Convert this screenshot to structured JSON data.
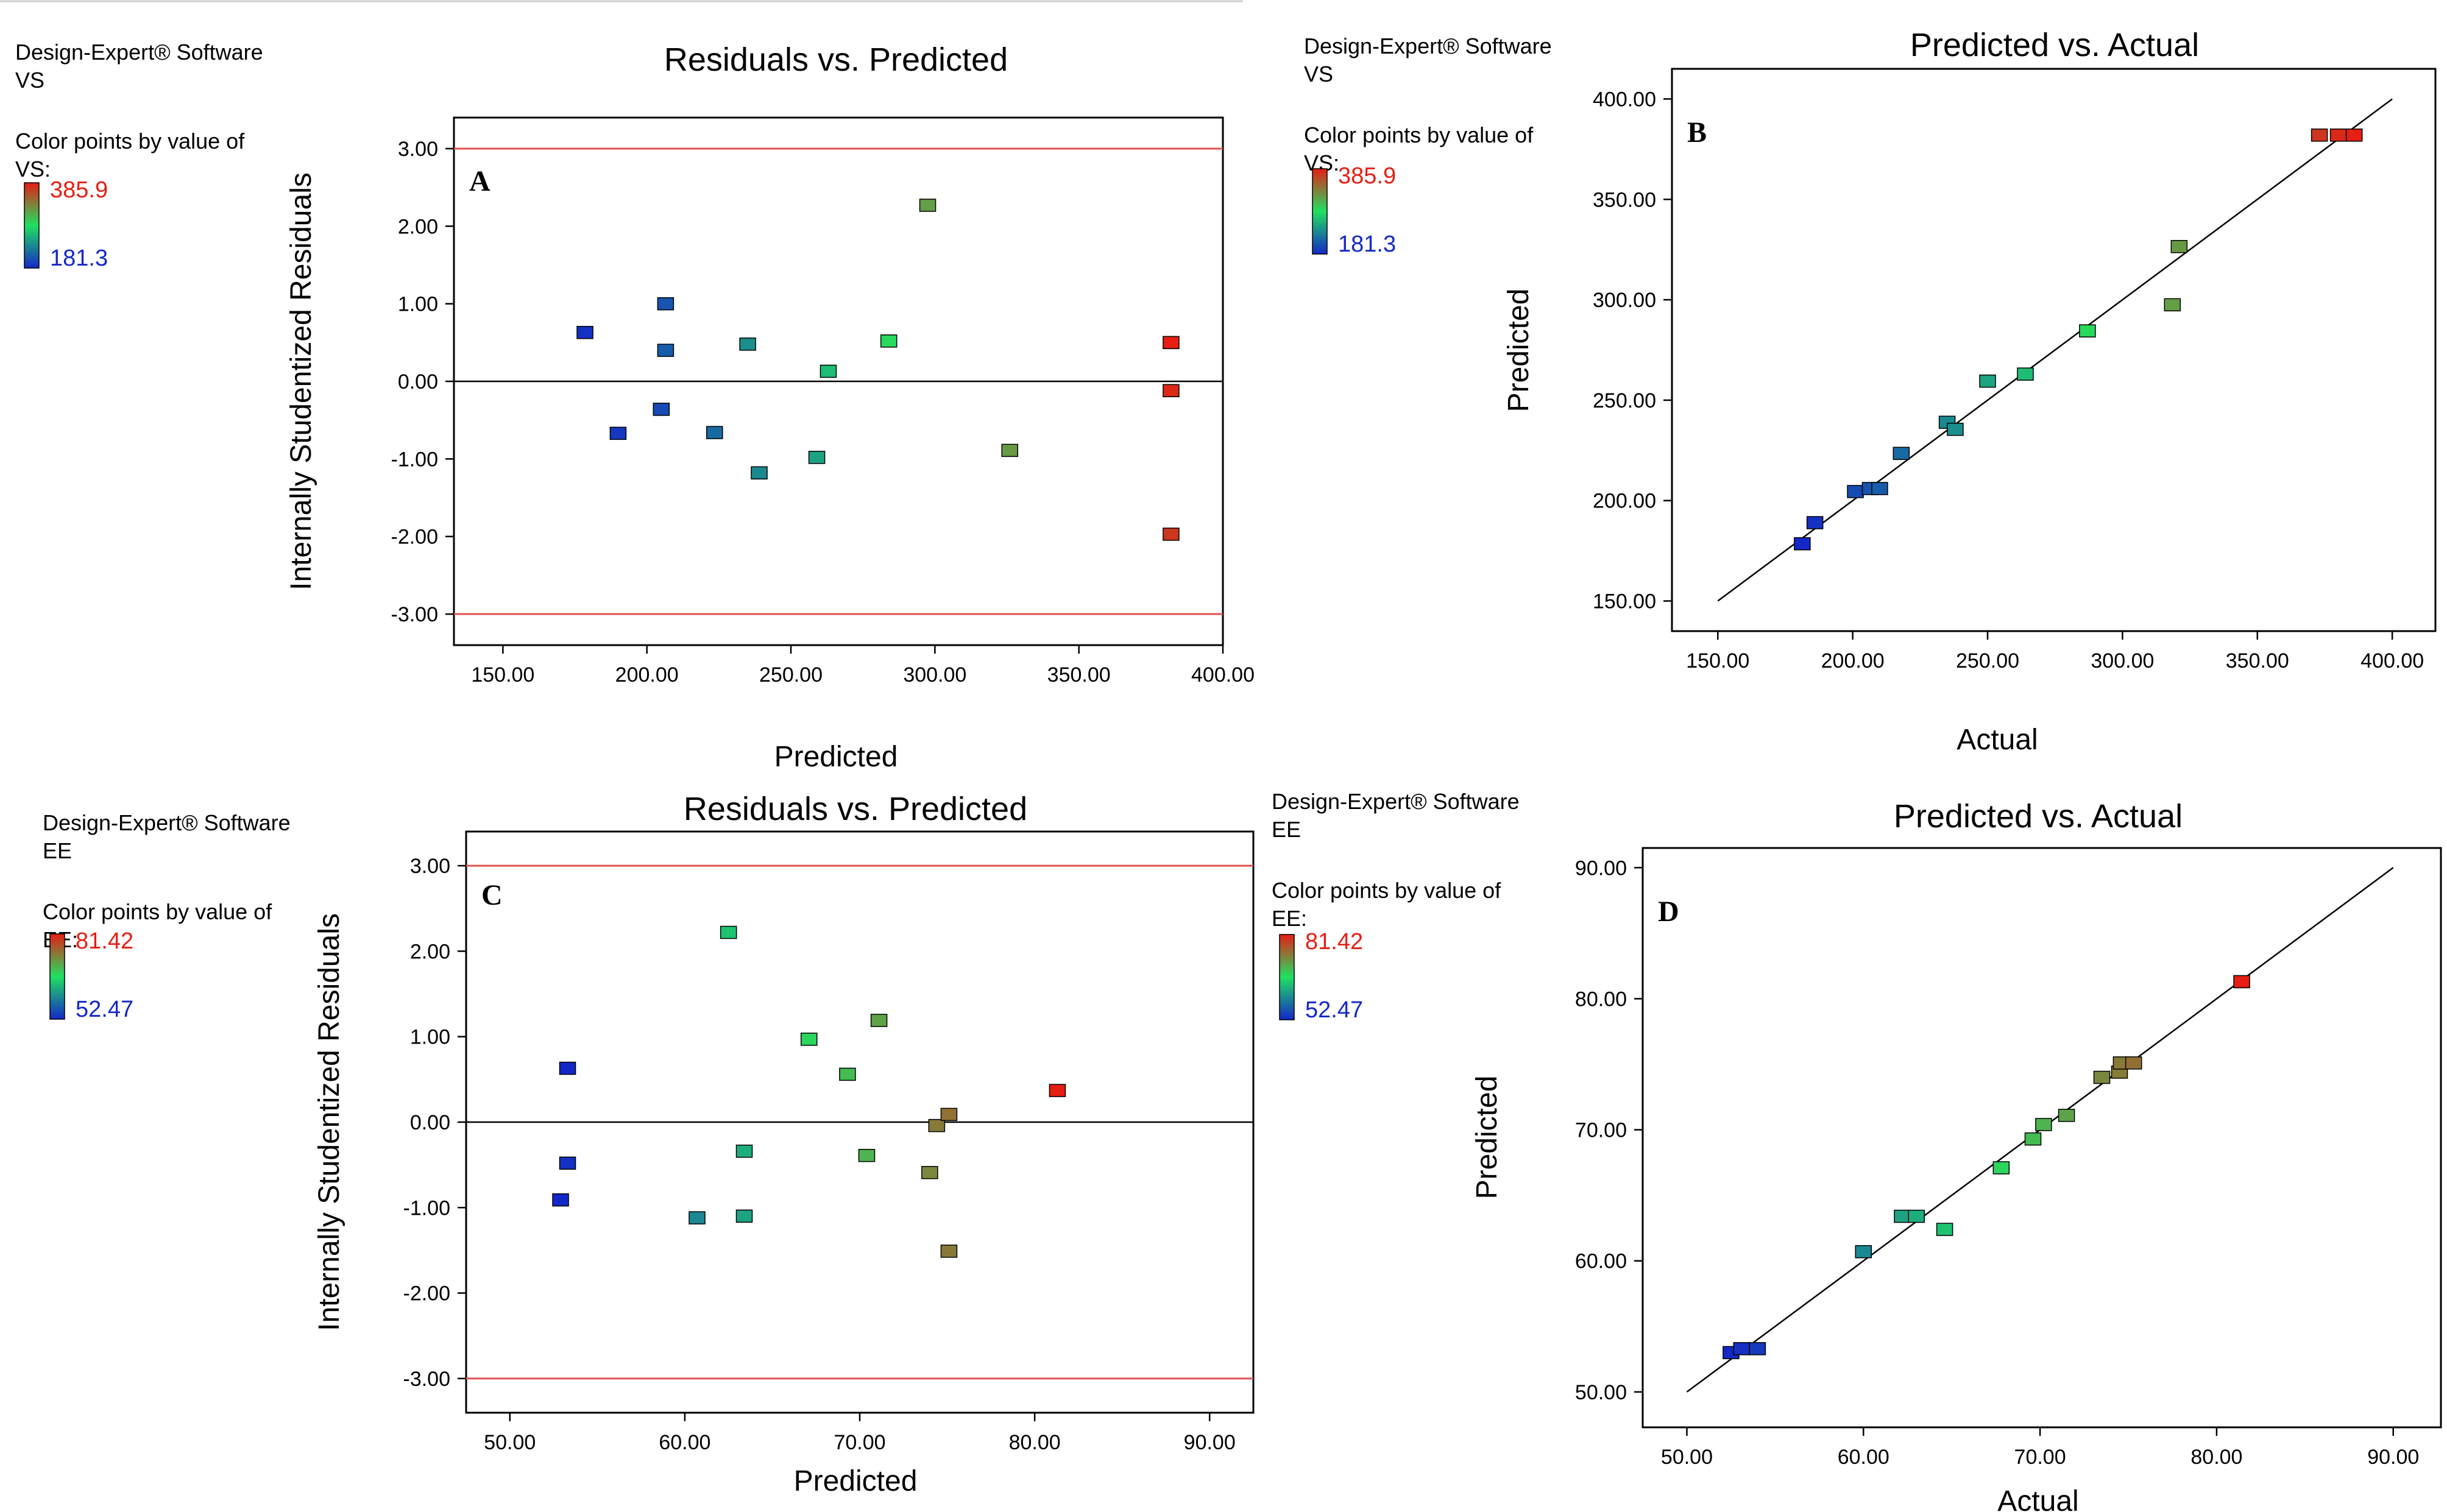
{
  "legend_heading": "Color points by value of",
  "colors": {
    "low": "#1428c8",
    "mid": "#20e060",
    "high": "#e61e14",
    "limit_line": "#e05050",
    "axis": "#000000"
  },
  "chart_data": [
    {
      "id": "A",
      "type": "scatter",
      "title": "Residuals vs. Predicted",
      "xlabel": "Predicted",
      "ylabel": "Internally Studentized Residuals",
      "software": "Design-Expert® Software",
      "response": "VS",
      "legend_var": "VS:",
      "legend_max": "385.9",
      "legend_min": "181.3",
      "color_range": [
        181.3,
        385.9
      ],
      "xlim": [
        133,
        400
      ],
      "ylim": [
        -3.4,
        3.4
      ],
      "xticks": [
        150,
        200,
        250,
        300,
        350,
        400
      ],
      "xtick_labels": [
        "150.00",
        "200.00",
        "250.00",
        "300.00",
        "350.00",
        "400.00"
      ],
      "yticks": [
        3,
        2,
        1,
        0,
        -1,
        -2,
        -3
      ],
      "ytick_labels": [
        "3.00",
        "2.00",
        "1.00",
        "0.00",
        "-1.00",
        "-2.00",
        "-3.00"
      ],
      "limit_lines": [
        3,
        -3
      ],
      "zero_line": 0,
      "points": [
        {
          "x": 178.5,
          "y": 0.63,
          "c": 186
        },
        {
          "x": 190,
          "y": -0.67,
          "c": 190
        },
        {
          "x": 205,
          "y": -0.36,
          "c": 200
        },
        {
          "x": 206.5,
          "y": 1.0,
          "c": 206
        },
        {
          "x": 206.5,
          "y": 0.4,
          "c": 210
        },
        {
          "x": 223.5,
          "y": -0.66,
          "c": 218
        },
        {
          "x": 235,
          "y": 0.48,
          "c": 238
        },
        {
          "x": 239,
          "y": -1.18,
          "c": 236
        },
        {
          "x": 259,
          "y": -0.98,
          "c": 250
        },
        {
          "x": 263,
          "y": 0.13,
          "c": 264
        },
        {
          "x": 284,
          "y": 0.52,
          "c": 287
        },
        {
          "x": 297.5,
          "y": 2.27,
          "c": 318
        },
        {
          "x": 326,
          "y": -0.89,
          "c": 321
        },
        {
          "x": 382,
          "y": 0.5,
          "c": 385.9
        },
        {
          "x": 382,
          "y": -0.12,
          "c": 380
        },
        {
          "x": 382,
          "y": -1.97,
          "c": 373
        }
      ]
    },
    {
      "id": "B",
      "type": "scatter",
      "title": "Predicted vs. Actual",
      "xlabel": "Actual",
      "ylabel": "Predicted",
      "software": "Design-Expert® Software",
      "response": "VS",
      "legend_var": "VS:",
      "legend_max": "385.9",
      "legend_min": "181.3",
      "color_range": [
        181.3,
        385.9
      ],
      "xlim": [
        133,
        416
      ],
      "ylim": [
        135,
        415
      ],
      "xticks": [
        150,
        200,
        250,
        300,
        350,
        400
      ],
      "xtick_labels": [
        "150.00",
        "200.00",
        "250.00",
        "300.00",
        "350.00",
        "400.00"
      ],
      "yticks": [
        400,
        350,
        300,
        250,
        200,
        150
      ],
      "ytick_labels": [
        "400.00",
        "350.00",
        "300.00",
        "250.00",
        "200.00",
        "150.00"
      ],
      "diagonal": [
        150,
        400
      ],
      "points": [
        {
          "x": 181.3,
          "y": 178.5,
          "c": 181.3
        },
        {
          "x": 186,
          "y": 189,
          "c": 186
        },
        {
          "x": 201,
          "y": 204.5,
          "c": 201
        },
        {
          "x": 206.5,
          "y": 206,
          "c": 206
        },
        {
          "x": 210,
          "y": 206,
          "c": 210
        },
        {
          "x": 218,
          "y": 223.5,
          "c": 218
        },
        {
          "x": 235,
          "y": 239,
          "c": 235
        },
        {
          "x": 238,
          "y": 235.5,
          "c": 238
        },
        {
          "x": 250,
          "y": 259.5,
          "c": 250
        },
        {
          "x": 264,
          "y": 263,
          "c": 264
        },
        {
          "x": 287,
          "y": 284.5,
          "c": 287
        },
        {
          "x": 318.5,
          "y": 297.5,
          "c": 318.5
        },
        {
          "x": 321,
          "y": 326.5,
          "c": 321
        },
        {
          "x": 373,
          "y": 382,
          "c": 373
        },
        {
          "x": 380,
          "y": 382,
          "c": 380
        },
        {
          "x": 385.9,
          "y": 382,
          "c": 385.9
        }
      ]
    },
    {
      "id": "C",
      "type": "scatter",
      "title": "Residuals vs. Predicted",
      "xlabel": "Predicted",
      "ylabel": "Internally Studentized Residuals",
      "software": "Design-Expert® Software",
      "response": "EE",
      "legend_var": "EE:",
      "legend_max": "81.42",
      "legend_min": "52.47",
      "color_range": [
        52.47,
        81.42
      ],
      "xlim": [
        47.5,
        92.5
      ],
      "ylim": [
        -3.4,
        3.4
      ],
      "xticks": [
        50,
        60,
        70,
        80,
        90
      ],
      "xtick_labels": [
        "50.00",
        "60.00",
        "70.00",
        "80.00",
        "90.00"
      ],
      "yticks": [
        3,
        2,
        1,
        0,
        -1,
        -2,
        -3
      ],
      "ytick_labels": [
        "3.00",
        "2.00",
        "1.00",
        "0.00",
        "-1.00",
        "-2.00",
        "-3.00"
      ],
      "limit_lines": [
        3,
        -3
      ],
      "zero_line": 0,
      "points": [
        {
          "x": 53.3,
          "y": 0.63,
          "c": 52.5
        },
        {
          "x": 53.3,
          "y": -0.48,
          "c": 53.2
        },
        {
          "x": 52.9,
          "y": -0.91,
          "c": 52.5
        },
        {
          "x": 60.7,
          "y": -1.12,
          "c": 60
        },
        {
          "x": 62.5,
          "y": 2.22,
          "c": 64.6
        },
        {
          "x": 63.4,
          "y": -0.34,
          "c": 63
        },
        {
          "x": 63.4,
          "y": -1.1,
          "c": 62.2
        },
        {
          "x": 67.1,
          "y": 0.97,
          "c": 67.8
        },
        {
          "x": 69.3,
          "y": 0.56,
          "c": 69.6
        },
        {
          "x": 70.4,
          "y": -0.39,
          "c": 70.2
        },
        {
          "x": 71.1,
          "y": 1.19,
          "c": 71.5
        },
        {
          "x": 74,
          "y": -0.59,
          "c": 73.5
        },
        {
          "x": 74.4,
          "y": -0.04,
          "c": 74.5
        },
        {
          "x": 75.1,
          "y": 0.09,
          "c": 75.3
        },
        {
          "x": 75.1,
          "y": -1.51,
          "c": 74.6
        },
        {
          "x": 81.3,
          "y": 0.37,
          "c": 81.42
        }
      ]
    },
    {
      "id": "D",
      "type": "scatter",
      "title": "Predicted vs. Actual",
      "xlabel": "Actual",
      "ylabel": "Predicted",
      "software": "Design-Expert® Software",
      "response": "EE",
      "legend_var": "EE:",
      "legend_max": "81.42",
      "legend_min": "52.47",
      "color_range": [
        52.47,
        81.42
      ],
      "xlim": [
        47.5,
        92.7
      ],
      "ylim": [
        47.3,
        91.5
      ],
      "xticks": [
        50,
        60,
        70,
        80,
        90
      ],
      "xtick_labels": [
        "50.00",
        "60.00",
        "70.00",
        "80.00",
        "90.00"
      ],
      "yticks": [
        90,
        80,
        70,
        60,
        50
      ],
      "ytick_labels": [
        "90.00",
        "80.00",
        "70.00",
        "60.00",
        "50.00"
      ],
      "diagonal": [
        50,
        90
      ],
      "points": [
        {
          "x": 52.5,
          "y": 53,
          "c": 52.47
        },
        {
          "x": 53.1,
          "y": 53.3,
          "c": 53.1
        },
        {
          "x": 54,
          "y": 53.3,
          "c": 54
        },
        {
          "x": 60,
          "y": 60.7,
          "c": 60
        },
        {
          "x": 62.2,
          "y": 63.4,
          "c": 62.2
        },
        {
          "x": 63,
          "y": 63.4,
          "c": 63
        },
        {
          "x": 64.6,
          "y": 62.4,
          "c": 64.6
        },
        {
          "x": 67.8,
          "y": 67.1,
          "c": 67.8
        },
        {
          "x": 69.6,
          "y": 69.3,
          "c": 69.6
        },
        {
          "x": 70.2,
          "y": 70.4,
          "c": 70.2
        },
        {
          "x": 71.5,
          "y": 71.1,
          "c": 71.5
        },
        {
          "x": 73.5,
          "y": 74,
          "c": 73.5
        },
        {
          "x": 74.5,
          "y": 74.4,
          "c": 74.5
        },
        {
          "x": 74.6,
          "y": 75.1,
          "c": 74.6
        },
        {
          "x": 75.3,
          "y": 75.1,
          "c": 75.3
        },
        {
          "x": 81.42,
          "y": 81.3,
          "c": 81.42
        }
      ]
    }
  ]
}
